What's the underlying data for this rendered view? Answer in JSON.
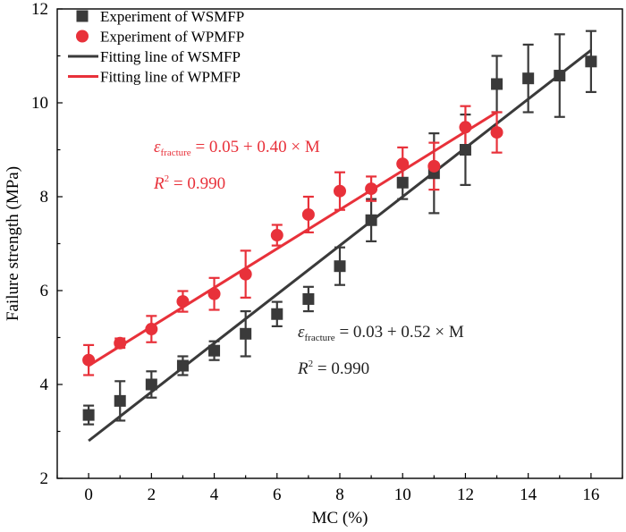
{
  "chart_data": {
    "type": "scatter",
    "xlabel": "MC (%)",
    "ylabel": "Failure strength (MPa)",
    "xlim": [
      -1,
      17
    ],
    "ylim": [
      2,
      12
    ],
    "xticks": [
      0,
      2,
      4,
      6,
      8,
      10,
      12,
      14,
      16
    ],
    "yticks": [
      2,
      4,
      6,
      8,
      10,
      12
    ],
    "xtick_labels": [
      "0",
      "2",
      "4",
      "6",
      "8",
      "10",
      "12",
      "14",
      "16"
    ],
    "ytick_labels": [
      "2",
      "4",
      "6",
      "8",
      "10",
      "12"
    ],
    "legend_position": "top-left",
    "series": [
      {
        "name": "Experiment of WSMFP",
        "marker": "square",
        "color": "#3a3a3a",
        "x": [
          0,
          1,
          2,
          3,
          4,
          5,
          6,
          7,
          8,
          9,
          10,
          11,
          12,
          13,
          14,
          15,
          16
        ],
        "y": [
          3.35,
          3.65,
          4.0,
          4.4,
          4.72,
          5.08,
          5.5,
          5.82,
          6.52,
          7.5,
          8.3,
          8.5,
          9.0,
          10.4,
          10.52,
          10.58,
          10.88
        ],
        "err": [
          0.2,
          0.42,
          0.28,
          0.2,
          0.2,
          0.48,
          0.26,
          0.26,
          0.4,
          0.45,
          0.35,
          0.85,
          0.75,
          0.6,
          0.72,
          0.88,
          0.65
        ]
      },
      {
        "name": "Experiment of WPMFP",
        "marker": "circle",
        "color": "#e8313a",
        "x": [
          0,
          1,
          2,
          3,
          4,
          5,
          6,
          7,
          8,
          9,
          10,
          11,
          12,
          13
        ],
        "y": [
          4.52,
          4.88,
          5.18,
          5.77,
          5.93,
          6.35,
          7.18,
          7.62,
          8.12,
          8.17,
          8.7,
          8.65,
          9.48,
          9.37
        ],
        "err": [
          0.32,
          0.1,
          0.28,
          0.22,
          0.34,
          0.5,
          0.22,
          0.38,
          0.4,
          0.26,
          0.35,
          0.5,
          0.45,
          0.43
        ]
      },
      {
        "name": "Fitting line of WSMFP",
        "type": "line",
        "color": "#3a3a3a",
        "x": [
          0,
          16
        ],
        "y": [
          2.8,
          11.12
        ]
      },
      {
        "name": "Fitting line of WPMFP",
        "type": "line",
        "color": "#e8313a",
        "x": [
          0,
          13
        ],
        "y": [
          4.4,
          9.8
        ]
      }
    ],
    "annotations": [
      {
        "id": "red-eq",
        "color": "#e8313a",
        "symbol": "ε",
        "subscript": "fracture",
        "rest": " = 0.05 + 0.40 × M",
        "r2_base": "R",
        "r2_sup": "2",
        "r2_rest": " = 0.990"
      },
      {
        "id": "black-eq",
        "color": "#222222",
        "symbol": "ε",
        "subscript": "fracture",
        "rest": " = 0.03 + 0.52 × M",
        "r2_base": "R",
        "r2_sup": "2",
        "r2_rest": " = 0.990"
      }
    ]
  }
}
